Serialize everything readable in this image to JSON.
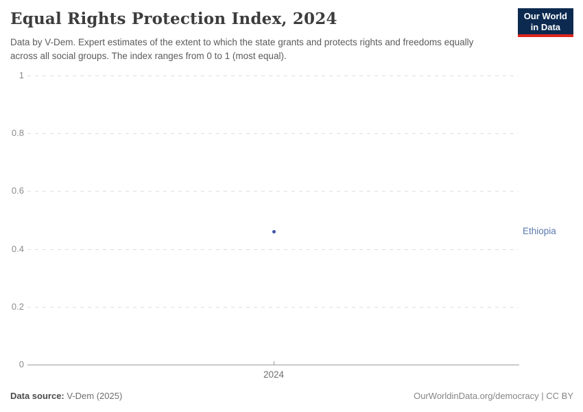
{
  "header": {
    "title": "Equal Rights Protection Index, 2024",
    "subtitle": "Data by V-Dem. Expert estimates of the extent to which the state grants and protects rights and freedoms equally across all social groups. The index ranges from 0 to 1 (most equal).",
    "logo": {
      "line1": "Our World",
      "line2": "in Data",
      "background_color": "#0c2a50",
      "accent_color": "#e0261c"
    }
  },
  "chart_data": {
    "type": "scatter",
    "title": "Equal Rights Protection Index, 2024",
    "x": [
      2024
    ],
    "x_tick_label": "2024",
    "series": [
      {
        "name": "Ethiopia",
        "values": [
          0.46
        ],
        "color": "#4155a4",
        "label_color": "#5b79ae"
      }
    ],
    "ylim": [
      0,
      1
    ],
    "yticks": [
      1,
      0.8,
      0.6,
      0.4,
      0.2,
      0
    ],
    "grid": "horizontal-dashed",
    "gridline_color": "#dedede",
    "axis_color": "#9b9b9b",
    "legend_position": "right-entity-label"
  },
  "footer": {
    "source_label": "Data source:",
    "source_value": "V-Dem (2025)",
    "right_text": "OurWorldinData.org/democracy | CC BY"
  }
}
